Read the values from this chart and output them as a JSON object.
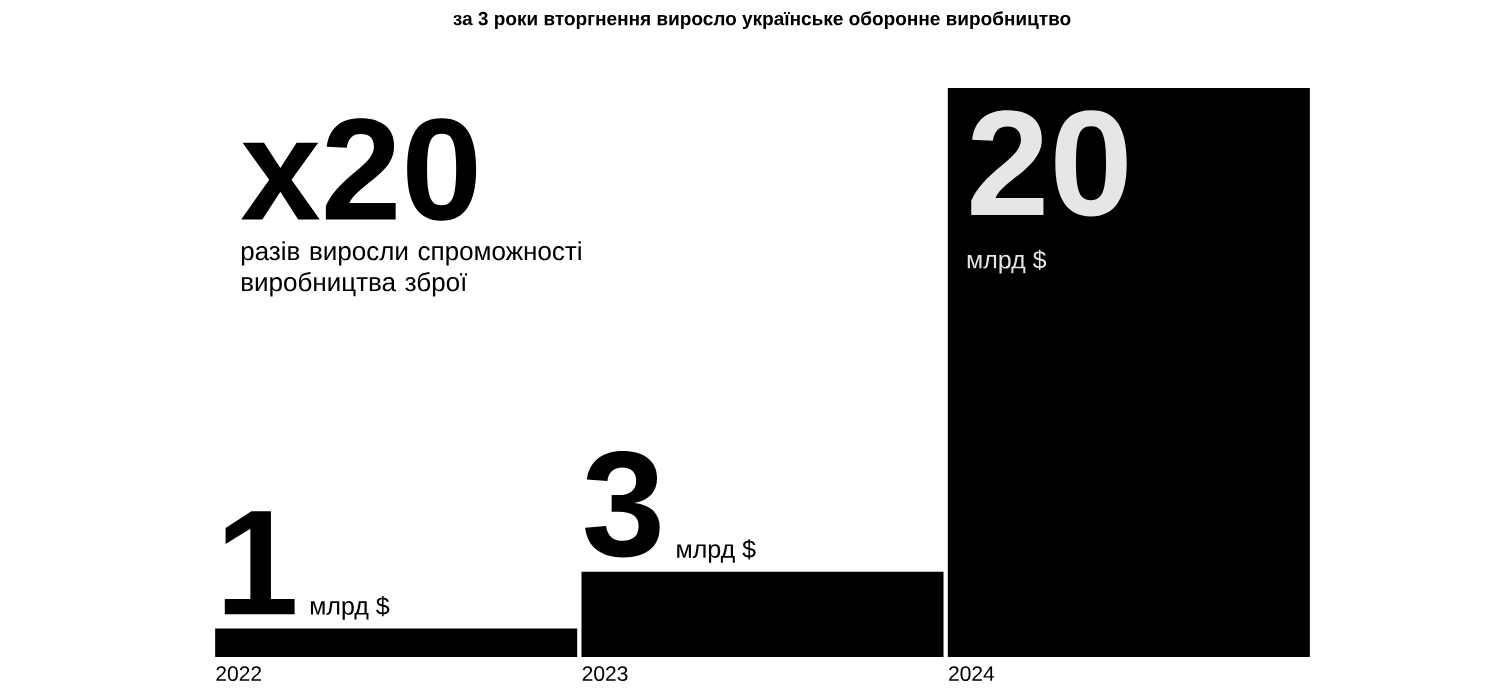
{
  "chart_data": {
    "type": "bar",
    "title": "за 3 роки вторгнення виросло українське оборонне виробництво",
    "categories": [
      "2022",
      "2023",
      "2024"
    ],
    "values": [
      1,
      3,
      20
    ],
    "color": "#000000",
    "data_labels": true,
    "tick_labels": "x",
    "annotations": [
      "x20",
      "разів виросли спроможності виробництва зброї",
      {
        "text": "млрд $",
        "x": "2022",
        "y": 1
      },
      {
        "text": "млрд $",
        "x": "2023",
        "y": 3
      },
      "млрд $"
    ]
  }
}
